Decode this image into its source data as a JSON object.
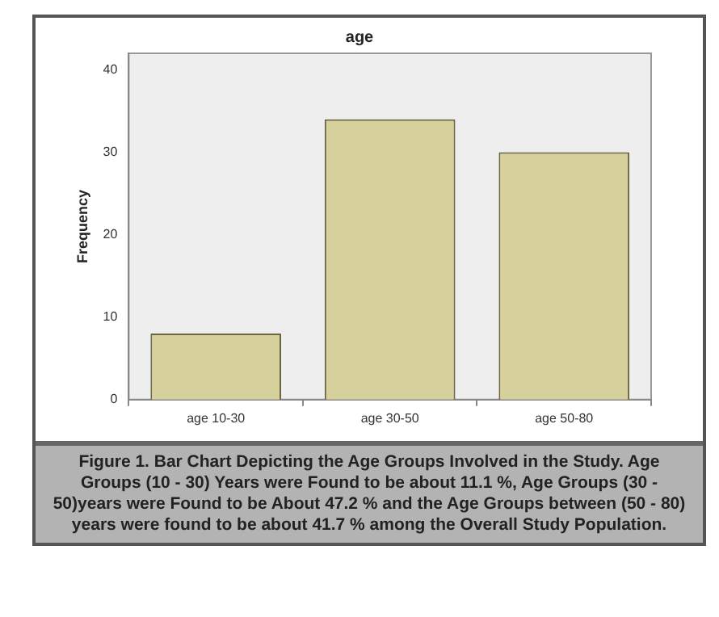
{
  "chart_data": {
    "type": "bar",
    "title": "age",
    "ylabel": "Frequency",
    "categories": [
      "age 10-30",
      "age 30-50",
      "age 50-80"
    ],
    "values": [
      8,
      34,
      30
    ],
    "color": "#d6d09c",
    "ylim": [
      0,
      42
    ],
    "yticks": [
      0,
      10,
      20,
      30,
      40
    ],
    "grid": false,
    "legend": false,
    "annotations": [
      "Figure 1. Bar Chart Depicting the Age Groups Involved in the Study. Age Groups (10 - 30) Years were Found to be about 11.1 %, Age Groups (30 - 50)years were Found to be About 47.2 % and the Age Groups between (50 - 80) years were found to be about 41.7 % among the  Overall Study Population."
    ]
  }
}
